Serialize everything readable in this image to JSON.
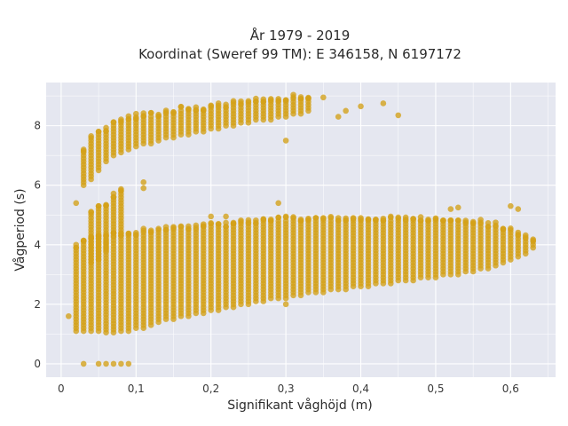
{
  "chart_data": {
    "type": "scatter",
    "title_lines": [
      "År 1979 - 2019",
      "Koordinat (Sweref 99 TM): E 346158, N 6197172"
    ],
    "xlabel": "Signifikant våghöjd (m)",
    "ylabel": "Vågperiod (s)",
    "xlim": [
      -0.02,
      0.66
    ],
    "ylim": [
      -0.45,
      9.45
    ],
    "x_ticks": [
      0,
      0.1,
      0.2,
      0.3,
      0.4,
      0.5,
      0.6
    ],
    "x_tick_labels": [
      "0",
      "0,1",
      "0,2",
      "0,3",
      "0,4",
      "0,5",
      "0,6"
    ],
    "y_ticks": [
      0,
      2,
      4,
      6,
      8
    ],
    "y_tick_labels": [
      "0",
      "2",
      "4",
      "6",
      "8"
    ],
    "grid": true,
    "point_color": "#D4A017",
    "plot_background": "#E5E7F0",
    "clusters": {
      "swell_band": {
        "x": [
          0.03,
          0.04,
          0.05,
          0.06,
          0.07,
          0.08,
          0.09,
          0.1,
          0.11,
          0.12,
          0.13,
          0.14,
          0.15,
          0.16,
          0.17,
          0.18,
          0.19,
          0.2,
          0.21,
          0.22,
          0.23,
          0.24,
          0.25,
          0.26,
          0.27,
          0.28,
          0.29,
          0.3,
          0.31,
          0.32,
          0.33
        ],
        "y_min": [
          6.0,
          6.2,
          6.5,
          6.8,
          7.0,
          7.1,
          7.2,
          7.3,
          7.4,
          7.4,
          7.5,
          7.6,
          7.6,
          7.7,
          7.7,
          7.8,
          7.8,
          7.9,
          7.9,
          8.0,
          8.0,
          8.1,
          8.1,
          8.2,
          8.2,
          8.2,
          8.3,
          8.3,
          8.4,
          8.4,
          8.5
        ],
        "y_max": [
          7.1,
          7.5,
          7.7,
          7.8,
          8.0,
          8.1,
          8.2,
          8.2,
          8.3,
          8.3,
          8.3,
          8.4,
          8.4,
          8.5,
          8.5,
          8.5,
          8.5,
          8.6,
          8.6,
          8.6,
          8.7,
          8.7,
          8.7,
          8.8,
          8.8,
          8.8,
          8.8,
          8.8,
          8.9,
          8.9,
          8.9
        ]
      },
      "wind_sea_band": {
        "x": [
          0.02,
          0.03,
          0.04,
          0.05,
          0.06,
          0.07,
          0.08,
          0.09,
          0.1,
          0.11,
          0.12,
          0.13,
          0.14,
          0.15,
          0.16,
          0.17,
          0.18,
          0.19,
          0.2,
          0.21,
          0.22,
          0.23,
          0.24,
          0.25,
          0.26,
          0.27,
          0.28,
          0.29,
          0.3,
          0.31,
          0.32,
          0.33,
          0.34,
          0.35,
          0.36,
          0.37,
          0.38,
          0.39,
          0.4,
          0.41,
          0.42,
          0.43,
          0.44,
          0.45,
          0.46,
          0.47,
          0.48,
          0.49,
          0.5,
          0.51,
          0.52,
          0.53,
          0.54,
          0.55,
          0.56,
          0.57,
          0.58,
          0.59,
          0.6,
          0.61,
          0.62,
          0.63
        ],
        "y_min": [
          1.1,
          1.1,
          1.1,
          1.1,
          1.05,
          1.05,
          1.1,
          1.1,
          1.2,
          1.3,
          1.3,
          1.4,
          1.5,
          1.5,
          1.6,
          1.6,
          1.7,
          1.7,
          1.8,
          1.8,
          1.9,
          1.9,
          2.0,
          2.0,
          2.1,
          2.1,
          2.2,
          2.2,
          2.2,
          2.3,
          2.3,
          2.4,
          2.4,
          2.4,
          2.5,
          2.5,
          2.5,
          2.6,
          2.6,
          2.6,
          2.7,
          2.7,
          2.7,
          2.8,
          2.8,
          2.8,
          2.9,
          2.9,
          2.9,
          3.0,
          3.0,
          3.0,
          3.1,
          3.1,
          3.2,
          3.2,
          3.3,
          3.4,
          3.5,
          3.6,
          3.7,
          3.9
        ],
        "y_max": [
          3.9,
          4.1,
          4.2,
          4.2,
          4.2,
          4.3,
          4.3,
          4.3,
          4.3,
          4.4,
          4.4,
          4.4,
          4.5,
          4.5,
          4.5,
          4.5,
          4.5,
          4.6,
          4.6,
          4.6,
          4.6,
          4.7,
          4.7,
          4.7,
          4.7,
          4.8,
          4.8,
          4.8,
          4.8,
          4.8,
          4.8,
          4.8,
          4.8,
          4.8,
          4.8,
          4.8,
          4.8,
          4.8,
          4.8,
          4.8,
          4.8,
          4.8,
          4.8,
          4.8,
          4.8,
          4.8,
          4.8,
          4.8,
          4.8,
          4.8,
          4.8,
          4.7,
          4.7,
          4.7,
          4.7,
          4.6,
          4.6,
          4.5,
          4.4,
          4.3,
          4.2,
          4.1
        ]
      },
      "outliers": [
        {
          "x": 0.01,
          "y": 1.6
        },
        {
          "x": 0.03,
          "y": 0.0
        },
        {
          "x": 0.05,
          "y": 0.0
        },
        {
          "x": 0.06,
          "y": 0.0
        },
        {
          "x": 0.07,
          "y": 0.0
        },
        {
          "x": 0.08,
          "y": 0.0
        },
        {
          "x": 0.09,
          "y": 0.0
        },
        {
          "x": 0.11,
          "y": 1.2
        },
        {
          "x": 0.3,
          "y": 2.0
        },
        {
          "x": 0.35,
          "y": 8.95
        },
        {
          "x": 0.4,
          "y": 8.65
        },
        {
          "x": 0.38,
          "y": 8.5
        },
        {
          "x": 0.43,
          "y": 8.75
        },
        {
          "x": 0.45,
          "y": 8.35
        },
        {
          "x": 0.37,
          "y": 8.3
        },
        {
          "x": 0.3,
          "y": 7.5
        },
        {
          "x": 0.1,
          "y": 8.4
        },
        {
          "x": 0.11,
          "y": 6.1
        },
        {
          "x": 0.11,
          "y": 5.9
        },
        {
          "x": 0.02,
          "y": 5.4
        },
        {
          "x": 0.29,
          "y": 5.4
        },
        {
          "x": 0.6,
          "y": 5.3
        },
        {
          "x": 0.61,
          "y": 5.2
        },
        {
          "x": 0.52,
          "y": 5.2
        },
        {
          "x": 0.53,
          "y": 5.25
        },
        {
          "x": 0.2,
          "y": 4.95
        },
        {
          "x": 0.22,
          "y": 4.95
        }
      ],
      "mid_cluster": {
        "x": [
          0.04,
          0.05,
          0.06,
          0.07,
          0.08
        ],
        "y_min": [
          3.4,
          3.5,
          3.8,
          4.3,
          4.4
        ],
        "y_max": [
          5.0,
          5.2,
          5.3,
          5.6,
          5.8
        ]
      }
    }
  }
}
